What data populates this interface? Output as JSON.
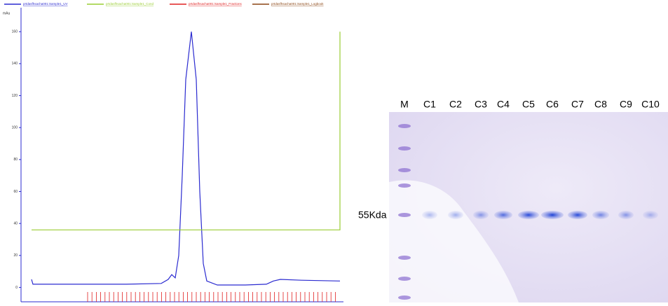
{
  "chart_data": {
    "type": "line",
    "y_label": "mAu",
    "xlim": [
      0,
      46
    ],
    "ylim": [
      -9,
      175
    ],
    "yticks": [
      0,
      20,
      40,
      60,
      80,
      100,
      120,
      140,
      160
    ],
    "series": [
      {
        "name": "prtdasfhsacha001:Sample1_UV",
        "color": "#2b2bd0",
        "x": [
          1.5,
          1.7,
          3,
          10,
          15,
          20,
          21,
          21.5,
          22,
          22.5,
          23,
          23.5,
          24.3,
          25,
          25.5,
          26,
          26.5,
          28,
          32,
          35,
          36,
          37,
          40,
          45.5
        ],
        "values": [
          5,
          2,
          2,
          2,
          2,
          2.5,
          5,
          8,
          6,
          20,
          70,
          130,
          160,
          130,
          60,
          15,
          4,
          1.5,
          1.5,
          2,
          4,
          5,
          4.5,
          4
        ]
      },
      {
        "name": "prtdasfhsacha001:Sample1_Cond",
        "color": "#9acd32",
        "x": [
          1.5,
          45.5,
          45.5
        ],
        "values": [
          36,
          36,
          160
        ]
      },
      {
        "name": "prtdasfhsacha001:Sample1_Fractions",
        "color": "#e02020",
        "x": [],
        "values": []
      },
      {
        "name": "prtdasfhsacha001:Sample1_Logbook",
        "color": "#8b4513",
        "x": [],
        "values": []
      }
    ]
  },
  "gel": {
    "marker_lane": "M",
    "lanes": [
      "C1",
      "C2",
      "C3",
      "C4",
      "C5",
      "C6",
      "C7",
      "C8",
      "C9",
      "C10"
    ],
    "band_label": "55Kda"
  }
}
